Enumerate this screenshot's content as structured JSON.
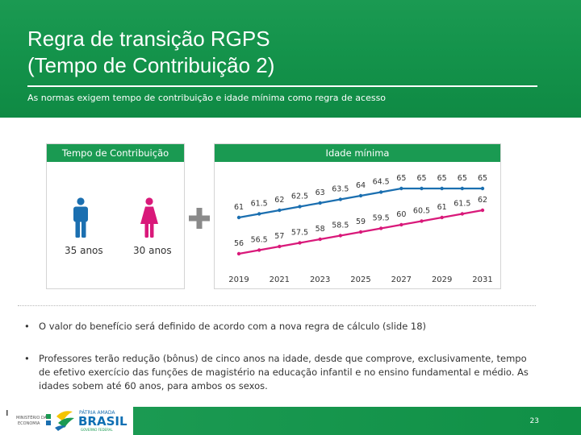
{
  "header": {
    "title_line1": "Regra de transição RGPS",
    "title_line2": "(Tempo de Contribuição 2)",
    "subtitle": "As normas exigem tempo de contribuição e idade mínima como regra de acesso"
  },
  "tempo_contribuicao": {
    "title": "Tempo de Contribuição",
    "male_label": "35 anos",
    "female_label": "30 anos",
    "male_color": "#1b6fb0",
    "female_color": "#d9197a"
  },
  "idade_minima": {
    "title": "Idade mínima"
  },
  "chart_data": {
    "type": "line",
    "x": [
      2019,
      2020,
      2021,
      2022,
      2023,
      2024,
      2025,
      2026,
      2027,
      2028,
      2029,
      2030,
      2031
    ],
    "x_tick_labels": [
      "2019",
      "2021",
      "2023",
      "2025",
      "2027",
      "2029",
      "2031"
    ],
    "series": [
      {
        "color": "#1b6fb0",
        "values": [
          61,
          61.5,
          62,
          62.5,
          63,
          63.5,
          64,
          64.5,
          65,
          65,
          65,
          65,
          65
        ],
        "labels": [
          "61",
          "61.5",
          "62",
          "62.5",
          "63",
          "63.5",
          "64",
          "64.5",
          "65",
          "65",
          "65",
          "65",
          "65"
        ]
      },
      {
        "color": "#d9197a",
        "values": [
          56,
          56.5,
          57,
          57.5,
          58,
          58.5,
          59,
          59.5,
          60,
          60.5,
          61,
          61.5,
          62
        ],
        "labels": [
          "56",
          "56.5",
          "57",
          "57.5",
          "58",
          "58.5",
          "59",
          "59.5",
          "60",
          "60.5",
          "61",
          "61.5",
          "62"
        ]
      }
    ],
    "ylim": [
      55,
      66
    ],
    "grid": false,
    "legend": "none"
  },
  "bullets": [
    {
      "text": "O valor do benefício será definido  de acordo com a nova regra de cálculo (slide 18)"
    },
    {
      "text": "Professores terão redução (bônus) de cinco anos na idade, desde que comprove, exclusivamente, tempo de efetivo exercício das funções de magistério na educação infantil e no ensino fundamental e médio.  As idades sobem até 60 anos, para ambos os sexos."
    }
  ],
  "footer": {
    "ministry_line1": "MINISTÉRIO DA",
    "ministry_line2": "ECONOMIA",
    "patria_amada": "PÁTRIA AMADA",
    "brasil": "BRASIL",
    "gov": "GOVERNO FEDERAL",
    "page_number": "23"
  },
  "colors": {
    "brand_green": "#1a9a52",
    "accent_yellow": "#f5c400"
  }
}
